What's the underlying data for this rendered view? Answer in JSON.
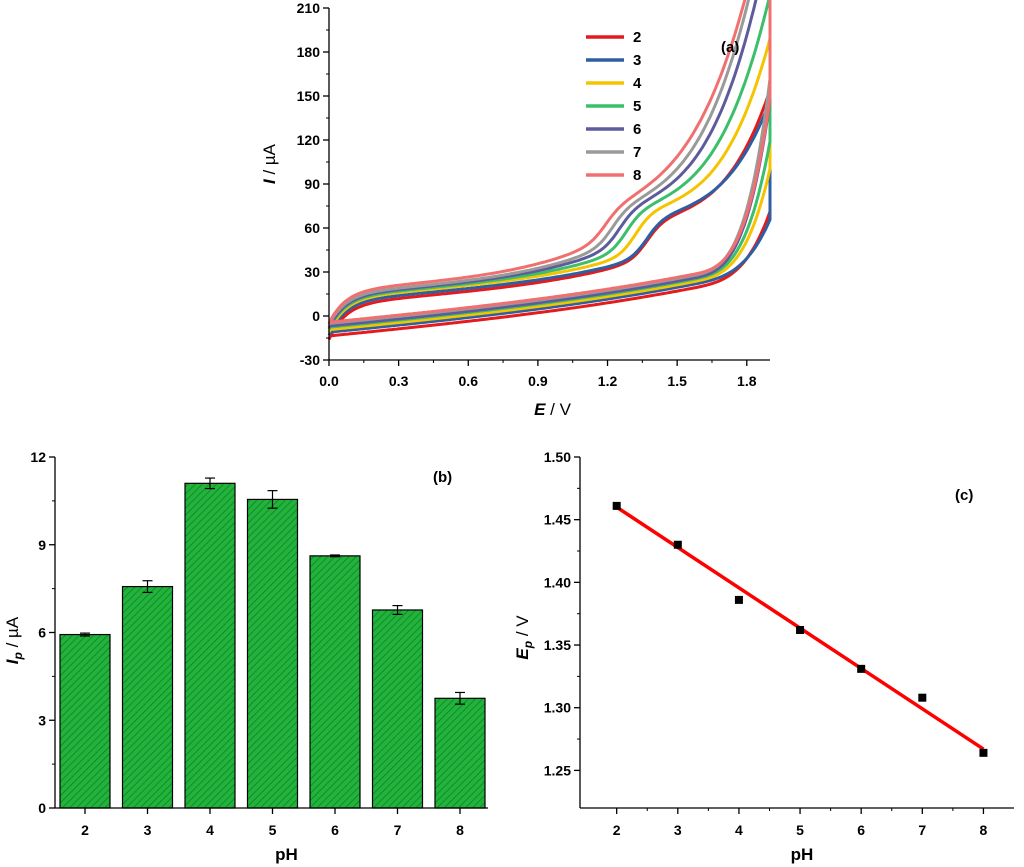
{
  "chart_data": [
    {
      "type": "line",
      "panel_label": "(a)",
      "xlabel_italic": "E",
      "xlabel_rest": " / V",
      "ylabel_italic": "I",
      "ylabel_rest": " / µA",
      "xlim": [
        0,
        1.9
      ],
      "ylim": [
        -30,
        210
      ],
      "xticks": [
        "0.0",
        "0.3",
        "0.6",
        "0.9",
        "1.2",
        "1.5",
        "1.8"
      ],
      "yticks": [
        "-30",
        "0",
        "30",
        "60",
        "90",
        "120",
        "150",
        "180",
        "210"
      ],
      "legend_position": "top-center",
      "series": [
        {
          "name": "2",
          "color": "#e41a1c",
          "e0": -16,
          "eMax": 121,
          "shoulder": [
            1.45,
            70
          ],
          "aLow": 8,
          "aPre": 40
        },
        {
          "name": "3",
          "color": "#2e5fa3",
          "e0": -13,
          "eMax": 113,
          "shoulder": [
            1.45,
            69
          ],
          "aLow": 10,
          "aPre": 38
        },
        {
          "name": "4",
          "color": "#f5c400",
          "e0": -11,
          "eMax": 146,
          "shoulder": [
            1.4,
            73
          ],
          "aLow": 12,
          "aPre": 40
        },
        {
          "name": "5",
          "color": "#3cbf6a",
          "e0": -9,
          "eMax": 163,
          "shoulder": [
            1.36,
            76
          ],
          "aLow": 13,
          "aPre": 45
        },
        {
          "name": "6",
          "color": "#5e5b9c",
          "e0": -8,
          "eMax": 190,
          "shoulder": [
            1.33,
            79
          ],
          "aLow": 14,
          "aPre": 50
        },
        {
          "name": "7",
          "color": "#9a9a9a",
          "e0": -6,
          "eMax": 203,
          "shoulder": [
            1.3,
            80
          ],
          "aLow": 15,
          "aPre": 52
        },
        {
          "name": "8",
          "color": "#f07070",
          "e0": -5,
          "eMax": 189,
          "shoulder": [
            1.27,
            81
          ],
          "aLow": 17,
          "aPre": 56
        }
      ]
    },
    {
      "type": "bar",
      "panel_label": "(b)",
      "xlabel": "pH",
      "ylabel_italic": "I",
      "ylabel_sub": "p",
      "ylabel_rest": " / µA",
      "ylim": [
        0,
        12
      ],
      "yticks": [
        "0",
        "3",
        "6",
        "9",
        "12"
      ],
      "categories": [
        "2",
        "3",
        "4",
        "5",
        "6",
        "7",
        "8"
      ],
      "values": [
        5.93,
        7.57,
        11.1,
        10.55,
        8.62,
        6.77,
        3.75
      ],
      "errors": [
        0.05,
        0.2,
        0.18,
        0.3,
        0.03,
        0.15,
        0.2
      ],
      "bar_color": "#22b33c"
    },
    {
      "type": "scatter",
      "panel_label": "(c)",
      "xlabel": "pH",
      "ylabel_italic": "E",
      "ylabel_sub": "p",
      "ylabel_rest": " / V",
      "xlim": [
        1.4,
        8.5
      ],
      "ylim": [
        1.22,
        1.5
      ],
      "xticks": [
        "2",
        "3",
        "4",
        "5",
        "6",
        "7",
        "8"
      ],
      "yticks": [
        "1.25",
        "1.30",
        "1.35",
        "1.40",
        "1.45",
        "1.50"
      ],
      "x": [
        2,
        3,
        4,
        5,
        6,
        7,
        8
      ],
      "y": [
        1.461,
        1.43,
        1.386,
        1.362,
        1.331,
        1.308,
        1.264
      ],
      "fit": {
        "x": [
          2,
          8
        ],
        "y": [
          1.46,
          1.267
        ]
      },
      "fit_color": "#ff0000"
    }
  ]
}
